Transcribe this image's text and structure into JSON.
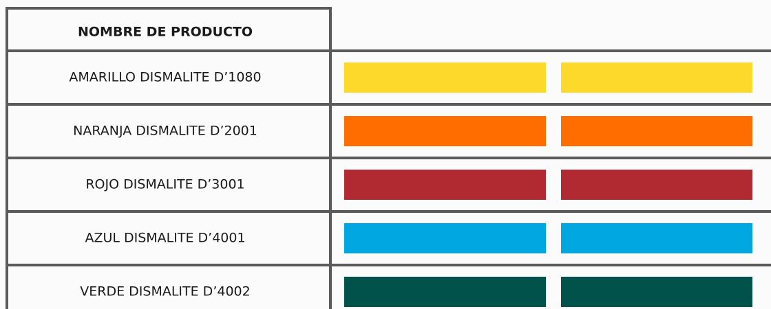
{
  "table": {
    "header": "NOMBRE DE PRODUCTO",
    "rows": [
      {
        "name": "AMARILLO DISMALITE D’1080",
        "color": "#fcd92b"
      },
      {
        "name": "NARANJA DISMALITE D’2001",
        "color": "#ff6d00"
      },
      {
        "name": "ROJO DISMALITE D’3001",
        "color": "#b22a31"
      },
      {
        "name": "AZUL DISMALITE D’4001",
        "color": "#00a7e1"
      },
      {
        "name": "VERDE DISMALITE D’4002",
        "color": "#00524a"
      }
    ]
  }
}
